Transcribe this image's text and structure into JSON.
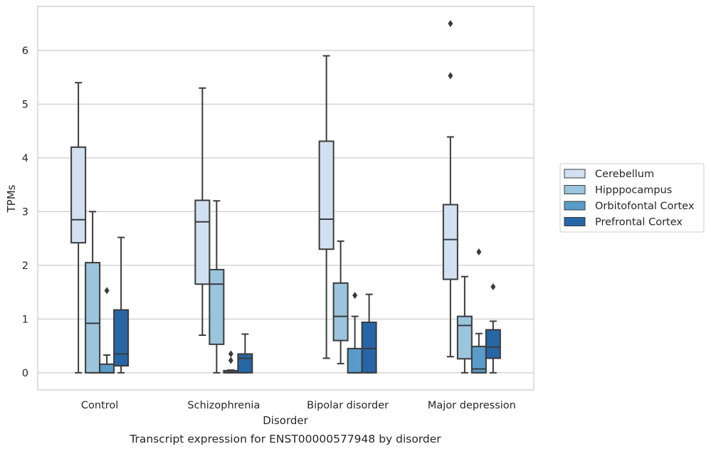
{
  "chart_data": {
    "type": "box",
    "title": "Transcript expression for ENST00000577948 by disorder",
    "xlabel": "Disorder",
    "ylabel": "TPMs",
    "ylim": [
      -0.32,
      6.82
    ],
    "yticks": [
      0,
      1,
      2,
      3,
      4,
      5,
      6
    ],
    "grid": "horizontal",
    "legend_position": "right",
    "categories": [
      "Control",
      "Schizophrenia",
      "Bipolar disorder",
      "Major depression"
    ],
    "series": [
      {
        "name": "Cerebellum",
        "color": "#d2e1f1",
        "boxes": [
          {
            "whisker_low": 0.0,
            "q1": 2.42,
            "median": 2.85,
            "q3": 4.2,
            "whisker_high": 5.4,
            "outliers": []
          },
          {
            "whisker_low": 0.7,
            "q1": 1.65,
            "median": 2.81,
            "q3": 3.21,
            "whisker_high": 5.3,
            "outliers": []
          },
          {
            "whisker_low": 0.27,
            "q1": 2.3,
            "median": 2.86,
            "q3": 4.31,
            "whisker_high": 5.9,
            "outliers": []
          },
          {
            "whisker_low": 0.3,
            "q1": 1.74,
            "median": 2.48,
            "q3": 3.13,
            "whisker_high": 4.39,
            "outliers": [
              5.53,
              6.5
            ]
          }
        ]
      },
      {
        "name": "Hipppocampus",
        "color": "#9bc4dd",
        "boxes": [
          {
            "whisker_low": 0.0,
            "q1": 0.0,
            "median": 0.92,
            "q3": 2.05,
            "whisker_high": 3.0,
            "outliers": []
          },
          {
            "whisker_low": 0.0,
            "q1": 0.53,
            "median": 1.65,
            "q3": 1.92,
            "whisker_high": 3.2,
            "outliers": []
          },
          {
            "whisker_low": 0.17,
            "q1": 0.6,
            "median": 1.05,
            "q3": 1.67,
            "whisker_high": 2.45,
            "outliers": []
          },
          {
            "whisker_low": 0.0,
            "q1": 0.26,
            "median": 0.88,
            "q3": 1.05,
            "whisker_high": 1.79,
            "outliers": []
          }
        ]
      },
      {
        "name": "Orbitofontal Cortex",
        "color": "#5a9cc9",
        "boxes": [
          {
            "whisker_low": 0.0,
            "q1": 0.0,
            "median": 0.0,
            "q3": 0.16,
            "whisker_high": 0.33,
            "outliers": [
              1.53
            ]
          },
          {
            "whisker_low": 0.0,
            "q1": 0.0,
            "median": 0.01,
            "q3": 0.04,
            "whisker_high": 0.05,
            "outliers": [
              0.23,
              0.35
            ]
          },
          {
            "whisker_low": 0.0,
            "q1": 0.0,
            "median": 0.0,
            "q3": 0.45,
            "whisker_high": 1.05,
            "outliers": [
              1.44
            ]
          },
          {
            "whisker_low": 0.0,
            "q1": 0.0,
            "median": 0.07,
            "q3": 0.49,
            "whisker_high": 0.73,
            "outliers": [
              2.25
            ]
          }
        ]
      },
      {
        "name": "Prefrontal Cortex",
        "color": "#2766a6",
        "boxes": [
          {
            "whisker_low": 0.0,
            "q1": 0.13,
            "median": 0.35,
            "q3": 1.17,
            "whisker_high": 2.52,
            "outliers": []
          },
          {
            "whisker_low": 0.0,
            "q1": 0.0,
            "median": 0.27,
            "q3": 0.35,
            "whisker_high": 0.72,
            "outliers": []
          },
          {
            "whisker_low": 0.0,
            "q1": 0.0,
            "median": 0.45,
            "q3": 0.94,
            "whisker_high": 1.46,
            "outliers": []
          },
          {
            "whisker_low": 0.0,
            "q1": 0.27,
            "median": 0.48,
            "q3": 0.8,
            "whisker_high": 0.96,
            "outliers": [
              1.6
            ]
          }
        ]
      }
    ]
  }
}
